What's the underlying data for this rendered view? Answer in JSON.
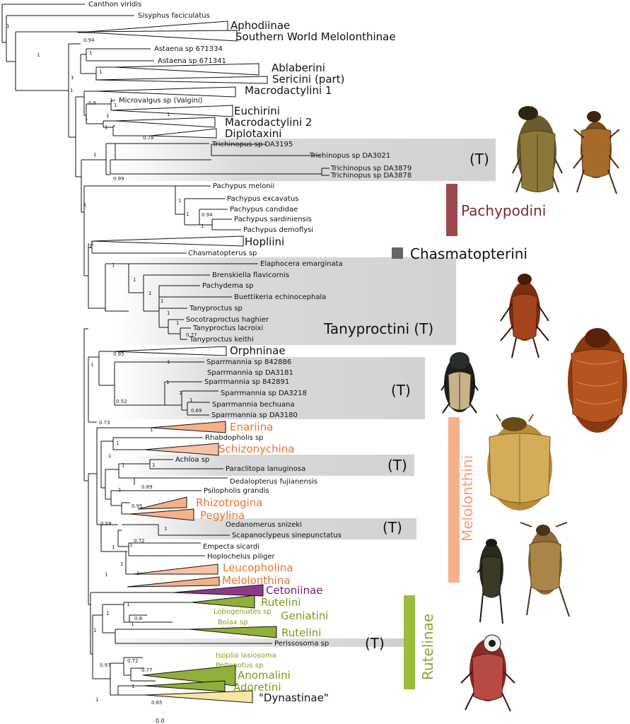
{
  "tips": [
    {
      "label": "Canthon viridis"
    },
    {
      "label": "Sisyphus faciculatus"
    },
    {
      "label": "Astaena sp 671334"
    },
    {
      "label": "Astaena sp 671341"
    },
    {
      "label": "Microvalgus sp (Valgini)"
    },
    {
      "label": "Trichinopus sp DA3195"
    },
    {
      "label": "Trichinopus  sp DA3021"
    },
    {
      "label": "Trichinopus  sp DA3879"
    },
    {
      "label": "Trichinopus  sp DA3878"
    },
    {
      "label": "Pachypus melonii"
    },
    {
      "label": "Pachypus excavatus"
    },
    {
      "label": "Pachypus candidae"
    },
    {
      "label": "Pachypus sardiniensis"
    },
    {
      "label": "Pachypus demoflysi"
    },
    {
      "label": "Chasmatopterus sp"
    },
    {
      "label": "Elaphocera emarginata"
    },
    {
      "label": "Brenskiella flavicornis"
    },
    {
      "label": "Pachydema sp"
    },
    {
      "label": "Buettikeria echinocephala"
    },
    {
      "label": "Tanyproctus sp"
    },
    {
      "label": "Socotraproctus haghier"
    },
    {
      "label": "Tanyproctus lacroixi"
    },
    {
      "label": "Tanyproctus keithi"
    },
    {
      "label": "Sparrmannia  sp 842886"
    },
    {
      "label": "Sparrmannia  sp DA3181"
    },
    {
      "label": "Sparrmannia  sp 842891"
    },
    {
      "label": "Sparrmannia  sp DA3218"
    },
    {
      "label": "Sparrmannia  bechuana"
    },
    {
      "label": "Sparrmannia  sp DA3180"
    },
    {
      "label": "Rhabdopholis sp"
    },
    {
      "label": "Achloa sp"
    },
    {
      "label": "Paraclitopa lanuginosa"
    },
    {
      "label": "Dedalopterus  fujianensis"
    },
    {
      "label": "Psilopholis grandis"
    },
    {
      "label": "Oedanomerus snizeki"
    },
    {
      "label": "Scapanoclypeus sinepunctatus"
    },
    {
      "label": "Empecta sicardi"
    },
    {
      "label": "Hoplochelus piliger"
    },
    {
      "label": "Lobogeniates sp"
    },
    {
      "label": "Bolax sp"
    },
    {
      "label": "Perissosoma sp"
    },
    {
      "label": "Isoplia lasiosoma"
    },
    {
      "label": "Peltonotus sp"
    }
  ],
  "clades": [
    {
      "label": "Aphodiinae",
      "color": "#111111"
    },
    {
      "label": "Southern World Melolonthinae",
      "color": "#111111"
    },
    {
      "label": "Ablaberini",
      "color": "#111111"
    },
    {
      "label": "Sericini (part)",
      "color": "#111111"
    },
    {
      "label": "Macrodactylini 1",
      "color": "#111111"
    },
    {
      "label": "Euchirini",
      "color": "#111111"
    },
    {
      "label": "Macrodactylini 2",
      "color": "#111111"
    },
    {
      "label": "Diplotaxini",
      "color": "#111111"
    },
    {
      "label": "Hopliini",
      "color": "#111111"
    },
    {
      "label": "Orphninae",
      "color": "#111111"
    },
    {
      "label": "Enariina",
      "color": "#e8742f"
    },
    {
      "label": "Schizonychina",
      "color": "#e8742f"
    },
    {
      "label": "Rhizotrogina",
      "color": "#e8742f"
    },
    {
      "label": "Pegylina",
      "color": "#e8742f"
    },
    {
      "label": "Leucopholina",
      "color": "#e8742f"
    },
    {
      "label": "Melolonthina",
      "color": "#e8742f"
    },
    {
      "label": "Cetoniinae",
      "color": "#7a1a74"
    },
    {
      "label": "Rutelini",
      "color": "#7a9a1a"
    },
    {
      "label": "Geniatini",
      "color": "#7a9a1a"
    },
    {
      "label": "Rutelini",
      "color": "#7a9a1a"
    },
    {
      "label": "Anomalini",
      "color": "#7a9a1a"
    },
    {
      "label": "Adoretini",
      "color": "#7a9a1a"
    },
    {
      "label": "\"Dynastinae\"",
      "color": "#111111"
    }
  ],
  "support_values": [
    "1",
    "1",
    "1",
    "0.94",
    "1",
    "1",
    "1",
    "1",
    "1",
    "0.6",
    "1",
    "1",
    "1",
    "1",
    "0.78",
    "1",
    "0.99",
    "1",
    "1",
    "1",
    "1",
    "0.94",
    "1",
    "1",
    "1",
    "1",
    "1",
    "1",
    "0.77",
    "1",
    "1",
    "0.95",
    "1",
    "1",
    "0.52",
    "1",
    "1",
    "1",
    "0.69",
    "0.73",
    "1",
    "1",
    "1",
    "1",
    "1",
    "0.89",
    "1",
    "0.95",
    "0.59",
    "1",
    "1",
    "0.72",
    "1",
    "1",
    "1",
    "1",
    "1",
    "1",
    "0.8",
    "1",
    "1",
    "0.97",
    "0.72",
    "0.77",
    "1",
    "0.65",
    "1"
  ],
  "tribes": {
    "pachypodini": {
      "label": "Pachypodini",
      "color": "#9c4a50"
    },
    "chasmatopterini": {
      "label": "Chasmatopterini",
      "color": "#666666"
    },
    "melolonthini": {
      "label": "Melolonthini",
      "color": "#f6b18a"
    },
    "rutelinae": {
      "label": "Rutelinae",
      "color": "#9dbb3c"
    },
    "tanyproctini": {
      "label": "Tanyproctini (T)"
    }
  },
  "t_marker": "(T)",
  "scale_label": "0.0",
  "colors": {
    "gray_box": "#d7d7d7",
    "orange": "#f6b08a",
    "purple": "#8e3a8c",
    "green": "#8fb03a",
    "yellow": "#f6e6a0"
  }
}
